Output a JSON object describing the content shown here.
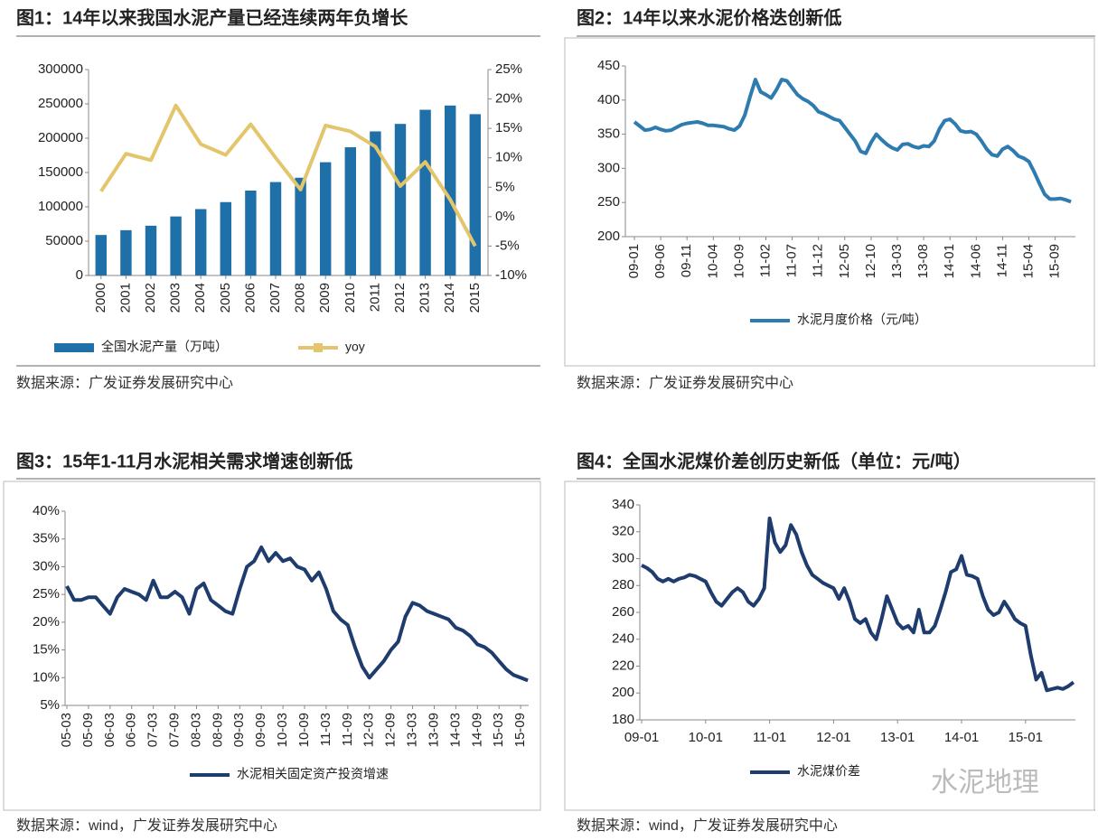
{
  "watermark": "水泥地理",
  "chart_data": [
    {
      "type": "bar",
      "title": "图1：14年以来我国水泥产量已经连续两年负增长",
      "source": "数据来源：广发证券发展研究中心",
      "categories": [
        "2000",
        "2001",
        "2002",
        "2003",
        "2004",
        "2005",
        "2006",
        "2007",
        "2008",
        "2009",
        "2010",
        "2011",
        "2012",
        "2013",
        "2014",
        "2015"
      ],
      "series": [
        {
          "name": "全国水泥产量（万吨）",
          "type": "bar",
          "color": "#1f6fa8",
          "values": [
            59000,
            66000,
            72500,
            86000,
            96700,
            106900,
            123700,
            136100,
            142400,
            165000,
            186800,
            209900,
            220800,
            241400,
            247600,
            235000
          ]
        },
        {
          "name": "yoy",
          "type": "line",
          "axis": "y2",
          "color": "#e3c56b",
          "values": [
            4.3,
            10.7,
            9.6,
            18.9,
            12.3,
            10.5,
            15.7,
            10.0,
            4.6,
            15.5,
            14.5,
            11.9,
            5.2,
            9.3,
            2.9,
            -5.0
          ]
        }
      ],
      "ylim": [
        0,
        300000
      ],
      "yticks": [
        0,
        50000,
        100000,
        150000,
        200000,
        250000,
        300000
      ],
      "y2lim": [
        -10,
        25
      ],
      "y2ticks": [
        {
          "value": -10,
          "label": "-10%"
        },
        {
          "value": -5,
          "label": "-5%"
        },
        {
          "value": 0,
          "label": "0%"
        },
        {
          "value": 5,
          "label": "5%"
        },
        {
          "value": 10,
          "label": "10%"
        },
        {
          "value": 15,
          "label": "15%"
        },
        {
          "value": 20,
          "label": "20%"
        },
        {
          "value": 25,
          "label": "25%"
        }
      ],
      "grid": false,
      "legend": "bottom"
    },
    {
      "type": "line",
      "title": "图2：14年以来水泥价格迭创新低",
      "source": "数据来源：广发证券发展研究中心",
      "categories": [
        "09-01",
        null,
        null,
        null,
        null,
        "09-06",
        null,
        null,
        null,
        null,
        "09-11",
        null,
        null,
        null,
        null,
        "10-04",
        null,
        null,
        null,
        null,
        "10-09",
        null,
        null,
        null,
        null,
        "11-02",
        null,
        null,
        null,
        null,
        "11-07",
        null,
        null,
        null,
        null,
        "11-12",
        null,
        null,
        null,
        null,
        "12-05",
        null,
        null,
        null,
        null,
        "12-10",
        null,
        null,
        null,
        null,
        "13-03",
        null,
        null,
        null,
        null,
        "13-08",
        null,
        null,
        null,
        null,
        "14-01",
        null,
        null,
        null,
        null,
        "14-06",
        null,
        null,
        null,
        null,
        "14-11",
        null,
        null,
        null,
        null,
        "15-04",
        null,
        null,
        null,
        null,
        "15-09",
        null,
        null,
        null
      ],
      "series": [
        {
          "name": "水泥月度价格（元/吨）",
          "color": "#2e7bb0",
          "values": [
            368,
            362,
            356,
            357,
            360,
            357,
            355,
            356,
            360,
            364,
            366,
            367,
            368,
            366,
            363,
            363,
            362,
            361,
            358,
            356,
            362,
            378,
            405,
            430,
            412,
            408,
            403,
            415,
            430,
            428,
            418,
            408,
            402,
            398,
            392,
            383,
            380,
            376,
            372,
            370,
            360,
            350,
            340,
            325,
            322,
            338,
            350,
            342,
            335,
            330,
            327,
            335,
            336,
            332,
            330,
            333,
            332,
            340,
            358,
            370,
            372,
            365,
            355,
            353,
            354,
            350,
            340,
            328,
            320,
            318,
            328,
            332,
            326,
            318,
            315,
            310,
            295,
            278,
            262,
            255,
            255,
            256,
            254,
            251
          ]
        }
      ],
      "ylim": [
        200,
        450
      ],
      "yticks": [
        200,
        250,
        300,
        350,
        400,
        450
      ],
      "grid": false,
      "legend": "bottom"
    },
    {
      "type": "line",
      "title": "图3：15年1-11月水泥相关需求增速创新低",
      "source": "数据来源：wind，广发证券发展研究中心",
      "categories": [
        "05-03",
        null,
        null,
        "05-09",
        null,
        null,
        "06-03",
        null,
        null,
        "06-09",
        null,
        null,
        "07-03",
        null,
        null,
        "07-09",
        null,
        null,
        "08-03",
        null,
        null,
        "08-09",
        null,
        null,
        "09-03",
        null,
        null,
        "09-09",
        null,
        null,
        "10-03",
        null,
        null,
        "10-09",
        null,
        null,
        "11-03",
        null,
        null,
        "11-09",
        null,
        null,
        "12-03",
        null,
        null,
        "12-09",
        null,
        null,
        "13-03",
        null,
        null,
        "13-09",
        null,
        null,
        "14-03",
        null,
        null,
        "14-09",
        null,
        null,
        "15-03",
        null,
        null,
        "15-09",
        null
      ],
      "series": [
        {
          "name": "水泥相关固定资产投资增速",
          "color": "#1f3c6e",
          "values": [
            26.5,
            24,
            24,
            24.5,
            24.5,
            23,
            21.5,
            24.5,
            26,
            25.5,
            25,
            24,
            27.5,
            24.5,
            24.5,
            25.5,
            24.5,
            21.5,
            26,
            27,
            24,
            23,
            22,
            21.5,
            26,
            30,
            31,
            33.5,
            31,
            32.5,
            31,
            31.5,
            30,
            29.5,
            27.5,
            29,
            26,
            22,
            20.5,
            19.5,
            15.5,
            12,
            10,
            11.5,
            13,
            15,
            16.5,
            21,
            23.5,
            23,
            22,
            21.5,
            21,
            20.5,
            19,
            18.5,
            17.5,
            16,
            15.5,
            14.5,
            13,
            11.5,
            10.5,
            10,
            9.5
          ]
        }
      ],
      "ylim": [
        5,
        40
      ],
      "yticks": [
        {
          "value": 5,
          "label": "5%"
        },
        {
          "value": 10,
          "label": "10%"
        },
        {
          "value": 15,
          "label": "15%"
        },
        {
          "value": 20,
          "label": "20%"
        },
        {
          "value": 25,
          "label": "25%"
        },
        {
          "value": 30,
          "label": "30%"
        },
        {
          "value": 35,
          "label": "35%"
        },
        {
          "value": 40,
          "label": "40%"
        }
      ],
      "grid": false,
      "legend": "bottom"
    },
    {
      "type": "line",
      "title": "图4：全国水泥煤价差创历史新低（单位：元/吨）",
      "source": "数据来源：wind，广发证券发展研究中心",
      "categories": [
        "09-01",
        null,
        null,
        null,
        null,
        null,
        null,
        null,
        null,
        null,
        null,
        null,
        "10-01",
        null,
        null,
        null,
        null,
        null,
        null,
        null,
        null,
        null,
        null,
        null,
        "11-01",
        null,
        null,
        null,
        null,
        null,
        null,
        null,
        null,
        null,
        null,
        null,
        "12-01",
        null,
        null,
        null,
        null,
        null,
        null,
        null,
        null,
        null,
        null,
        null,
        "13-01",
        null,
        null,
        null,
        null,
        null,
        null,
        null,
        null,
        null,
        null,
        null,
        "14-01",
        null,
        null,
        null,
        null,
        null,
        null,
        null,
        null,
        null,
        null,
        null,
        "15-01",
        null,
        null,
        null,
        null,
        null,
        null,
        null,
        null,
        null
      ],
      "series": [
        {
          "name": "水泥煤价差",
          "color": "#1f3c6e",
          "values": [
            295,
            293,
            290,
            285,
            283,
            285,
            283,
            285,
            286,
            288,
            287,
            285,
            283,
            275,
            268,
            265,
            270,
            275,
            278,
            275,
            268,
            265,
            270,
            278,
            330,
            312,
            305,
            310,
            325,
            318,
            305,
            295,
            288,
            285,
            282,
            280,
            278,
            270,
            278,
            268,
            255,
            252,
            255,
            245,
            240,
            255,
            272,
            262,
            252,
            248,
            250,
            245,
            262,
            245,
            245,
            250,
            262,
            275,
            290,
            292,
            302,
            288,
            287,
            285,
            272,
            262,
            258,
            260,
            268,
            262,
            255,
            252,
            250,
            228,
            210,
            215,
            202,
            203,
            204,
            203,
            205,
            208
          ]
        }
      ],
      "ylim": [
        180,
        340
      ],
      "yticks": [
        180,
        200,
        220,
        240,
        260,
        280,
        300,
        320,
        340
      ],
      "grid": false,
      "legend": "bottom"
    }
  ]
}
